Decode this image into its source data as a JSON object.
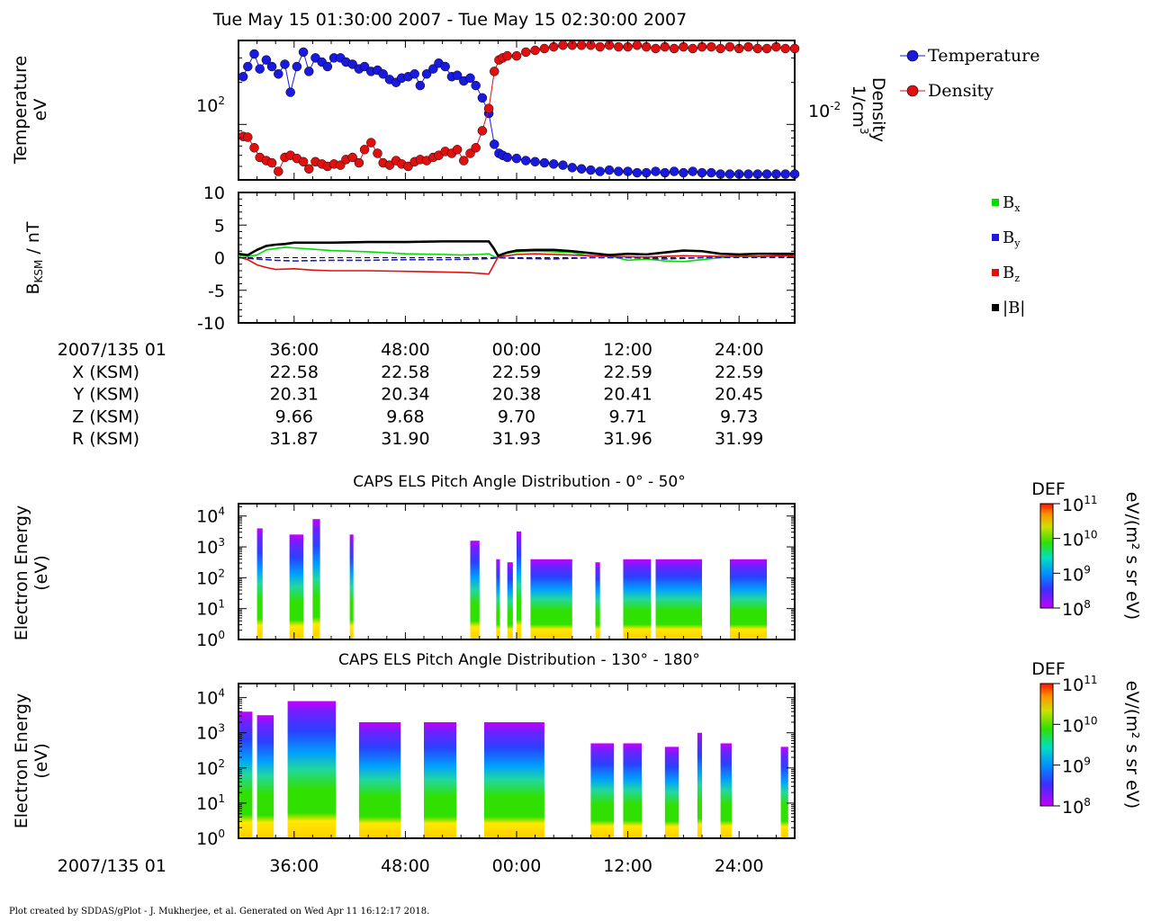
{
  "page": {
    "title": "Tue May 15 01:30:00 2007 - Tue May 15 02:30:00 2007",
    "footer": "Plot created by SDDAS/gPlot - J. Mukherjee, et al.  Generated on Wed Apr 11 16:12:17 2018."
  },
  "colors": {
    "temperature": "#1a1adf",
    "density": "#e01010",
    "bx": "#00dd00",
    "by": "#1a1adf",
    "bz": "#e01010",
    "bmag": "#000000"
  },
  "chart_data": [
    {
      "type": "scatter",
      "panel": "plasma",
      "ylabel": "Temperature\neV",
      "ylabel2": "Density\n1/cm3",
      "y_tick_label": "10",
      "y_tick_exp": "2",
      "y2_tick_label": "10",
      "y2_tick_exp": "-2",
      "legend": [
        "Temperature",
        "Density"
      ],
      "yscale": "log",
      "ylim": [
        40,
        400
      ],
      "y2lim": [
        0.004,
        0.04
      ],
      "series": [
        {
          "name": "Temperature",
          "x": [
            30.5,
            31,
            31.7,
            32.3,
            33,
            33.6,
            34.3,
            35,
            35.6,
            36.3,
            37,
            37.6,
            38.3,
            39,
            39.6,
            40.3,
            41,
            41.6,
            42.3,
            43,
            43.6,
            44.3,
            45,
            45.6,
            46.3,
            47,
            47.6,
            48.3,
            49,
            49.6,
            50.3,
            51,
            51.6,
            52.3,
            53,
            53.6,
            54.3,
            55,
            55.6,
            56.3,
            57,
            57.6,
            58.1,
            58.5,
            59,
            60,
            61,
            62,
            63,
            64,
            65,
            66,
            67,
            68,
            69,
            70,
            71,
            72,
            73,
            74,
            75,
            76,
            77,
            78,
            79,
            80,
            81,
            82,
            83,
            84,
            85,
            86,
            87,
            88,
            89,
            90
          ],
          "y": [
            220,
            260,
            320,
            250,
            290,
            260,
            230,
            270,
            170,
            260,
            330,
            240,
            300,
            280,
            260,
            300,
            300,
            280,
            270,
            250,
            260,
            240,
            245,
            230,
            210,
            200,
            215,
            220,
            230,
            190,
            230,
            250,
            275,
            260,
            220,
            225,
            205,
            215,
            190,
            155,
            120,
            72,
            62,
            60,
            58,
            57,
            55,
            54,
            53,
            52,
            51,
            49,
            48,
            47,
            46,
            47,
            46,
            46,
            45,
            45,
            46,
            45,
            46,
            45,
            46,
            45,
            45,
            44,
            44,
            44,
            44,
            44,
            44,
            44,
            44,
            44
          ],
          "density": false
        },
        {
          "name": "Density",
          "x": [
            30.5,
            31,
            31.7,
            32.3,
            33,
            33.6,
            34.3,
            35,
            35.6,
            36.3,
            37,
            37.6,
            38.3,
            39,
            39.6,
            40.3,
            41,
            41.6,
            42.3,
            43,
            43.6,
            44.3,
            45,
            45.6,
            46.3,
            47,
            47.6,
            48.3,
            49,
            49.6,
            50.3,
            51,
            51.6,
            52.3,
            53,
            53.6,
            54.3,
            55,
            55.6,
            56.3,
            57,
            57.6,
            58.1,
            58.5,
            59,
            60,
            61,
            62,
            63,
            64,
            65,
            66,
            67,
            68,
            69,
            70,
            71,
            72,
            73,
            74,
            75,
            76,
            77,
            78,
            79,
            80,
            81,
            82,
            83,
            84,
            85,
            86,
            87,
            88,
            89,
            90
          ],
          "y": [
            0.0082,
            0.0081,
            0.0068,
            0.0058,
            0.0055,
            0.0053,
            0.0046,
            0.0058,
            0.006,
            0.0057,
            0.0054,
            0.0048,
            0.0054,
            0.0052,
            0.005,
            0.0052,
            0.0051,
            0.0056,
            0.0058,
            0.0053,
            0.0066,
            0.0074,
            0.0062,
            0.0053,
            0.0051,
            0.0055,
            0.0052,
            0.005,
            0.0054,
            0.0056,
            0.0055,
            0.0058,
            0.006,
            0.0064,
            0.0062,
            0.0066,
            0.0055,
            0.0062,
            0.0068,
            0.009,
            0.013,
            0.024,
            0.029,
            0.03,
            0.031,
            0.031,
            0.033,
            0.034,
            0.035,
            0.036,
            0.037,
            0.037,
            0.037,
            0.037,
            0.036,
            0.037,
            0.036,
            0.036,
            0.037,
            0.036,
            0.035,
            0.036,
            0.035,
            0.036,
            0.035,
            0.036,
            0.036,
            0.035,
            0.036,
            0.035,
            0.036,
            0.035,
            0.035,
            0.036,
            0.035,
            0.035
          ],
          "density": true
        }
      ]
    },
    {
      "type": "line",
      "panel": "magnetic",
      "ylabel": "B",
      "ylabel_sub": "KSM",
      "ylabel_suffix": " / nT",
      "ylim": [
        -10,
        10
      ],
      "yticks": [
        "10",
        "5",
        "0",
        "-5",
        "-10"
      ],
      "series": [
        {
          "name": "B",
          "sub": "x",
          "x": [
            30,
            31,
            32,
            33,
            34,
            35,
            36,
            38,
            40,
            44,
            48,
            52,
            54,
            56,
            57,
            57.5,
            58,
            59,
            60,
            62,
            64,
            66,
            68,
            70,
            72,
            74,
            76,
            78,
            80,
            82,
            84,
            86,
            88,
            90
          ],
          "y": [
            0.3,
            0.2,
            0.4,
            1.2,
            1.4,
            1.6,
            1.5,
            1.3,
            1.1,
            0.9,
            0.6,
            0.5,
            0.4,
            0.5,
            0.6,
            0.2,
            0.0,
            0.7,
            0.9,
            1.0,
            0.9,
            0.8,
            0.2,
            0.3,
            -0.4,
            -0.2,
            -0.5,
            -0.6,
            -0.3,
            0.0,
            0.3,
            0.2,
            0.3,
            0.3
          ]
        },
        {
          "name": "B",
          "sub": "y",
          "x": [
            30,
            32,
            34,
            36,
            40,
            44,
            48,
            52,
            56,
            57.5,
            58,
            60,
            64,
            68,
            72,
            76,
            80,
            84,
            90
          ],
          "y": [
            0.0,
            -0.2,
            -0.4,
            -0.5,
            -0.4,
            -0.4,
            -0.3,
            -0.3,
            -0.2,
            -0.1,
            0.0,
            -0.1,
            -0.2,
            0.0,
            0.0,
            -0.2,
            0.0,
            0.1,
            0.1
          ]
        },
        {
          "name": "B",
          "sub": "z",
          "x": [
            30,
            31,
            32,
            33,
            34,
            36,
            38,
            40,
            44,
            48,
            52,
            55,
            57,
            57.5,
            58,
            60,
            62,
            66,
            70,
            74,
            78,
            82,
            86,
            90
          ],
          "y": [
            0.1,
            -0.3,
            -1.1,
            -1.5,
            -1.8,
            -1.7,
            -1.9,
            -2.0,
            -2.0,
            -2.1,
            -2.2,
            -2.3,
            -2.5,
            -1.2,
            0.1,
            0.5,
            0.6,
            0.4,
            0.2,
            0.1,
            0.3,
            0.2,
            0.2,
            0.3
          ]
        },
        {
          "name": "|B|",
          "sub": "",
          "x": [
            30,
            31,
            32,
            33,
            34,
            35,
            36,
            38,
            40,
            44,
            48,
            52,
            55,
            57,
            57.5,
            58,
            59,
            60,
            62,
            64,
            66,
            68,
            70,
            72,
            74,
            76,
            78,
            80,
            82,
            84,
            86,
            88,
            90
          ],
          "y": [
            0.6,
            0.4,
            1.2,
            1.8,
            2.0,
            2.1,
            2.3,
            2.3,
            2.3,
            2.4,
            2.4,
            2.5,
            2.5,
            2.5,
            1.5,
            0.3,
            0.8,
            1.1,
            1.2,
            1.2,
            1.0,
            0.7,
            0.4,
            0.6,
            0.5,
            0.8,
            1.1,
            1.0,
            0.6,
            0.5,
            0.6,
            0.6,
            0.6
          ]
        }
      ]
    },
    {
      "type": "heatmap",
      "panel": "els_low",
      "title": "CAPS ELS Pitch Angle Distribution - 0° - 50°",
      "ylabel": "Electron Energy\n(eV)",
      "yscale": "log",
      "yticks": [
        "0",
        "1",
        "2",
        "3",
        "4"
      ],
      "colorbar": {
        "label": "DEF",
        "units": "eV/(m² s sr eV)",
        "ticks": [
          "11",
          "10",
          "9",
          "8"
        ]
      },
      "blocks": [
        {
          "x0": 32.0,
          "x1": 32.6,
          "e0": 0,
          "e1": 3.6
        },
        {
          "x0": 35.5,
          "x1": 37.0,
          "e0": 0,
          "e1": 3.4
        },
        {
          "x0": 38.0,
          "x1": 38.8,
          "e0": 0,
          "e1": 3.9
        },
        {
          "x0": 42.0,
          "x1": 42.4,
          "e0": 0,
          "e1": 3.4
        },
        {
          "x0": 55.0,
          "x1": 56.0,
          "e0": 0,
          "e1": 3.2
        },
        {
          "x0": 57.8,
          "x1": 58.2,
          "e0": 0,
          "e1": 2.6
        },
        {
          "x0": 59.0,
          "x1": 59.6,
          "e0": 0,
          "e1": 2.5
        },
        {
          "x0": 60.0,
          "x1": 60.5,
          "e0": 0,
          "e1": 3.5
        },
        {
          "x0": 61.5,
          "x1": 66.0,
          "e0": 0,
          "e1": 2.6
        },
        {
          "x0": 68.5,
          "x1": 69.0,
          "e0": 0,
          "e1": 2.5
        },
        {
          "x0": 71.5,
          "x1": 74.5,
          "e0": 0,
          "e1": 2.6
        },
        {
          "x0": 75.0,
          "x1": 80.0,
          "e0": 0,
          "e1": 2.6
        },
        {
          "x0": 83.0,
          "x1": 87.0,
          "e0": 0,
          "e1": 2.6
        }
      ]
    },
    {
      "type": "heatmap",
      "panel": "els_high",
      "title": "CAPS ELS Pitch Angle Distribution - 130° - 180°",
      "ylabel": "Electron Energy\n(eV)",
      "yscale": "log",
      "yticks": [
        "0",
        "1",
        "2",
        "3",
        "4"
      ],
      "colorbar": {
        "label": "DEF",
        "units": "eV/(m² s sr eV)",
        "ticks": [
          "11",
          "10",
          "9",
          "8"
        ]
      },
      "blocks": [
        {
          "x0": 30.0,
          "x1": 31.5,
          "e0": 0,
          "e1": 3.6
        },
        {
          "x0": 32.0,
          "x1": 33.8,
          "e0": 0,
          "e1": 3.5
        },
        {
          "x0": 35.3,
          "x1": 40.5,
          "e0": 0,
          "e1": 3.9
        },
        {
          "x0": 43.0,
          "x1": 47.5,
          "e0": 0,
          "e1": 3.3
        },
        {
          "x0": 50.0,
          "x1": 53.5,
          "e0": 0,
          "e1": 3.3
        },
        {
          "x0": 56.5,
          "x1": 63.0,
          "e0": 0,
          "e1": 3.3
        },
        {
          "x0": 68.0,
          "x1": 70.5,
          "e0": 0,
          "e1": 2.7
        },
        {
          "x0": 71.5,
          "x1": 73.5,
          "e0": 0,
          "e1": 2.7
        },
        {
          "x0": 76.0,
          "x1": 77.5,
          "e0": 0,
          "e1": 2.6
        },
        {
          "x0": 79.5,
          "x1": 80.0,
          "e0": 0,
          "e1": 3.0
        },
        {
          "x0": 82.0,
          "x1": 83.2,
          "e0": 0,
          "e1": 2.7
        },
        {
          "x0": 88.5,
          "x1": 89.3,
          "e0": 0,
          "e1": 2.6
        }
      ]
    }
  ],
  "time_axis": {
    "xlim_minutes": [
      30,
      90
    ],
    "tick_minutes": [
      36,
      48,
      60,
      72,
      84
    ],
    "tick_labels": [
      "36:00",
      "48:00",
      "00:00",
      "12:00",
      "24:00"
    ]
  },
  "ephemeris": {
    "epoch_label": "2007/135 01",
    "rows": [
      {
        "label": "X (KSM)",
        "values": [
          "22.58",
          "22.58",
          "22.59",
          "22.59",
          "22.59"
        ]
      },
      {
        "label": "Y (KSM)",
        "values": [
          "20.31",
          "20.34",
          "20.38",
          "20.41",
          "20.45"
        ]
      },
      {
        "label": "Z (KSM)",
        "values": [
          "9.66",
          "9.68",
          "9.70",
          "9.71",
          "9.73"
        ]
      },
      {
        "label": "R (KSM)",
        "values": [
          "31.87",
          "31.90",
          "31.93",
          "31.96",
          "31.99"
        ]
      }
    ]
  },
  "bottom_axis": {
    "epoch_label": "2007/135 01",
    "tick_labels": [
      "36:00",
      "48:00",
      "00:00",
      "12:00",
      "24:00"
    ]
  }
}
